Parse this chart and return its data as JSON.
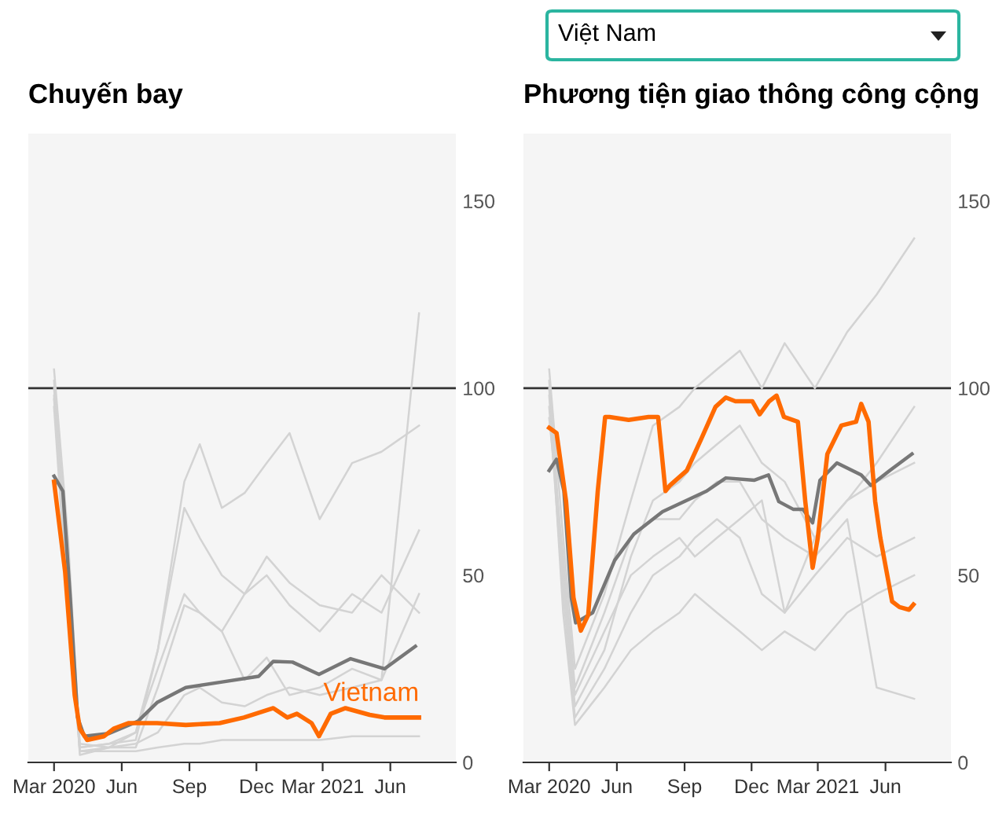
{
  "chart_data": [
    {
      "type": "line",
      "title": "Chuyến bay",
      "ylim": [
        0,
        168
      ],
      "yticks": [
        0,
        50,
        100,
        150
      ],
      "xlim": [
        "2020-01-26",
        "2021-08-29"
      ],
      "xticks": [
        {
          "value": "2020-03-01",
          "label": "Mar 2020"
        },
        {
          "value": "2020-06-01",
          "label": "Jun"
        },
        {
          "value": "2020-09-01",
          "label": "Sep"
        },
        {
          "value": "2020-12-01",
          "label": "Dec"
        },
        {
          "value": "2021-03-01",
          "label": "Mar 2021"
        },
        {
          "value": "2021-06-01",
          "label": "Jun"
        }
      ],
      "ref_lines": [
        {
          "axis": "y",
          "value": 100,
          "color": "#333333"
        }
      ],
      "grid": false,
      "legend": false,
      "series": [
        {
          "color": "#d3d3d3",
          "x": [
            "2020-03-01",
            "2020-03-20",
            "2020-04-05",
            "2020-05-15",
            "2020-06-20",
            "2020-07-20",
            "2020-08-25",
            "2020-09-15",
            "2020-10-15",
            "2020-11-15",
            "2020-12-15",
            "2021-01-15",
            "2021-02-25",
            "2021-04-10",
            "2021-05-20",
            "2021-07-10"
          ],
          "values": [
            105,
            60,
            5,
            4,
            8,
            30,
            75,
            85,
            68,
            72,
            80,
            88,
            65,
            80,
            83,
            90
          ]
        },
        {
          "color": "#d3d3d3",
          "x": [
            "2020-03-01",
            "2020-03-20",
            "2020-04-05",
            "2020-05-15",
            "2020-06-20",
            "2020-07-20",
            "2020-08-25",
            "2020-09-15",
            "2020-10-15",
            "2020-11-15",
            "2020-12-15",
            "2021-01-15",
            "2021-02-25",
            "2021-04-10",
            "2021-05-20",
            "2021-07-10"
          ],
          "values": [
            100,
            50,
            4,
            5,
            6,
            30,
            68,
            60,
            50,
            45,
            50,
            42,
            35,
            45,
            40,
            62
          ]
        },
        {
          "color": "#d3d3d3",
          "x": [
            "2020-03-01",
            "2020-03-20",
            "2020-04-05",
            "2020-05-15",
            "2020-06-20",
            "2020-07-20",
            "2020-08-25",
            "2020-09-15",
            "2020-10-15",
            "2020-11-15",
            "2020-12-15",
            "2021-01-15",
            "2021-02-25",
            "2021-04-10",
            "2021-05-20",
            "2021-07-10"
          ],
          "values": [
            98,
            45,
            3,
            4,
            4,
            20,
            42,
            40,
            35,
            22,
            28,
            18,
            20,
            25,
            22,
            45
          ]
        },
        {
          "color": "#d3d3d3",
          "x": [
            "2020-03-01",
            "2020-03-20",
            "2020-04-05",
            "2020-05-15",
            "2020-06-20",
            "2020-07-20",
            "2020-08-25",
            "2020-09-15",
            "2020-10-15",
            "2020-11-15",
            "2020-12-15",
            "2021-01-15",
            "2021-02-25",
            "2021-04-10",
            "2021-05-20",
            "2021-07-10"
          ],
          "values": [
            95,
            40,
            3,
            3,
            3,
            4,
            5,
            5,
            6,
            6,
            6,
            6,
            6,
            7,
            7,
            7
          ]
        },
        {
          "color": "#d3d3d3",
          "x": [
            "2020-03-01",
            "2020-03-20",
            "2020-04-05",
            "2020-05-15",
            "2020-06-20",
            "2020-07-20",
            "2020-08-25",
            "2020-09-15",
            "2020-10-15",
            "2020-11-15",
            "2020-12-15",
            "2021-01-15",
            "2021-02-25",
            "2021-04-10",
            "2021-05-20",
            "2021-07-10"
          ],
          "values": [
            102,
            55,
            2,
            4,
            5,
            8,
            18,
            20,
            16,
            15,
            18,
            20,
            18,
            20,
            22,
            120
          ]
        },
        {
          "color": "#d3d3d3",
          "x": [
            "2020-03-01",
            "2020-03-20",
            "2020-04-05",
            "2020-05-15",
            "2020-06-20",
            "2020-07-20",
            "2020-08-25",
            "2020-09-15",
            "2020-10-15",
            "2020-11-15",
            "2020-12-15",
            "2021-01-15",
            "2021-02-25",
            "2021-04-10",
            "2021-05-20",
            "2021-07-10"
          ],
          "values": [
            97,
            48,
            4,
            5,
            8,
            25,
            45,
            40,
            35,
            45,
            55,
            48,
            42,
            40,
            50,
            40
          ]
        },
        {
          "color": "#777777",
          "x": [
            "2020-03-01",
            "2020-03-13",
            "2020-03-23",
            "2020-04-02",
            "2020-04-11",
            "2020-05-14",
            "2020-06-23",
            "2020-07-19",
            "2020-08-27",
            "2020-10-12",
            "2020-12-04",
            "2020-12-24",
            "2021-01-19",
            "2021-02-24",
            "2021-04-08",
            "2021-05-24",
            "2021-07-05"
          ],
          "values": [
            76.5,
            72.5,
            44,
            12,
            7,
            7.7,
            11,
            16,
            20,
            21.4,
            23,
            27,
            26.8,
            23.5,
            27.7,
            25,
            31
          ]
        },
        {
          "name": "Vietnam",
          "color": "#ff6a00",
          "x": [
            "2020-03-01",
            "2020-03-16",
            "2020-03-29",
            "2020-04-05",
            "2020-04-15",
            "2020-05-08",
            "2020-05-21",
            "2020-06-10",
            "2020-07-19",
            "2020-08-27",
            "2020-10-12",
            "2020-11-14",
            "2020-12-24",
            "2021-01-12",
            "2021-01-25",
            "2021-02-14",
            "2021-02-24",
            "2021-03-12",
            "2021-04-01",
            "2021-05-04",
            "2021-05-24",
            "2021-06-19",
            "2021-07-10"
          ],
          "values": [
            75,
            51,
            18,
            9,
            6,
            7,
            9,
            10.5,
            10.5,
            10,
            10.5,
            12,
            14.5,
            12,
            13,
            10.5,
            7,
            13,
            14.5,
            12.7,
            12,
            12,
            12
          ]
        }
      ]
    },
    {
      "type": "line",
      "title": "Phương tiện giao thông công cộng",
      "ylim": [
        0,
        168
      ],
      "yticks": [
        0,
        50,
        100,
        150
      ],
      "xlim": [
        "2020-01-26",
        "2021-08-29"
      ],
      "xticks": [
        {
          "value": "2020-03-01",
          "label": "Mar 2020"
        },
        {
          "value": "2020-06-01",
          "label": "Jun"
        },
        {
          "value": "2020-09-01",
          "label": "Sep"
        },
        {
          "value": "2020-12-01",
          "label": "Dec"
        },
        {
          "value": "2021-03-01",
          "label": "Mar 2021"
        },
        {
          "value": "2021-06-01",
          "label": "Jun"
        }
      ],
      "ref_lines": [
        {
          "axis": "y",
          "value": 100,
          "color": "#333333"
        }
      ],
      "grid": false,
      "legend": false,
      "annotations": [
        "Việt Nam"
      ],
      "series": [
        {
          "color": "#d3d3d3",
          "x": [
            "2020-03-01",
            "2020-03-20",
            "2020-04-05",
            "2020-05-15",
            "2020-06-20",
            "2020-07-20",
            "2020-08-25",
            "2020-09-15",
            "2020-10-15",
            "2020-11-15",
            "2020-12-15",
            "2021-01-15",
            "2021-02-25",
            "2021-04-10",
            "2021-05-20",
            "2021-07-10"
          ],
          "values": [
            105,
            60,
            25,
            45,
            70,
            90,
            95,
            100,
            105,
            110,
            100,
            112,
            100,
            115,
            125,
            140
          ]
        },
        {
          "color": "#d3d3d3",
          "x": [
            "2020-03-01",
            "2020-03-20",
            "2020-04-05",
            "2020-05-15",
            "2020-06-20",
            "2020-07-20",
            "2020-08-25",
            "2020-09-15",
            "2020-10-15",
            "2020-11-15",
            "2020-12-15",
            "2021-01-15",
            "2021-02-25",
            "2021-04-10",
            "2021-05-20",
            "2021-07-10"
          ],
          "values": [
            98,
            50,
            15,
            30,
            55,
            70,
            75,
            80,
            85,
            90,
            80,
            75,
            60,
            70,
            80,
            95
          ]
        },
        {
          "color": "#d3d3d3",
          "x": [
            "2020-03-01",
            "2020-03-20",
            "2020-04-05",
            "2020-05-15",
            "2020-06-20",
            "2020-07-20",
            "2020-08-25",
            "2020-09-15",
            "2020-10-15",
            "2020-11-15",
            "2020-12-15",
            "2021-01-15",
            "2021-02-25",
            "2021-04-10",
            "2021-05-20",
            "2021-07-10"
          ],
          "values": [
            95,
            45,
            12,
            25,
            40,
            50,
            55,
            60,
            65,
            60,
            45,
            40,
            50,
            60,
            55,
            60
          ]
        },
        {
          "color": "#d3d3d3",
          "x": [
            "2020-03-01",
            "2020-03-20",
            "2020-04-05",
            "2020-05-15",
            "2020-06-20",
            "2020-07-20",
            "2020-08-25",
            "2020-09-15",
            "2020-10-15",
            "2020-11-15",
            "2020-12-15",
            "2021-01-15",
            "2021-02-25",
            "2021-04-10",
            "2021-05-20",
            "2021-07-10"
          ],
          "values": [
            100,
            40,
            10,
            20,
            30,
            35,
            40,
            45,
            40,
            35,
            30,
            35,
            30,
            40,
            45,
            50
          ]
        },
        {
          "color": "#d3d3d3",
          "x": [
            "2020-03-01",
            "2020-03-20",
            "2020-04-05",
            "2020-05-15",
            "2020-06-20",
            "2020-07-20",
            "2020-08-25",
            "2020-09-15",
            "2020-10-15",
            "2020-11-15",
            "2020-12-15",
            "2021-01-15",
            "2021-02-25",
            "2021-04-10",
            "2021-05-20",
            "2021-07-10"
          ],
          "values": [
            92,
            55,
            20,
            40,
            60,
            65,
            65,
            70,
            75,
            75,
            65,
            60,
            55,
            65,
            20,
            17
          ]
        },
        {
          "color": "#d3d3d3",
          "x": [
            "2020-03-01",
            "2020-03-20",
            "2020-04-05",
            "2020-05-15",
            "2020-06-20",
            "2020-07-20",
            "2020-08-25",
            "2020-09-15",
            "2020-10-15",
            "2020-11-15",
            "2020-12-15",
            "2021-01-15",
            "2021-02-25",
            "2021-04-10",
            "2021-05-20",
            "2021-07-10"
          ],
          "values": [
            102,
            50,
            18,
            35,
            50,
            55,
            60,
            55,
            60,
            65,
            70,
            40,
            60,
            70,
            75,
            80
          ]
        },
        {
          "color": "#777777",
          "x": [
            "2020-03-01",
            "2020-03-11",
            "2020-03-21",
            "2020-03-31",
            "2020-04-06",
            "2020-04-29",
            "2020-05-29",
            "2020-06-24",
            "2020-08-02",
            "2020-10-01",
            "2020-10-27",
            "2020-12-05",
            "2020-12-24",
            "2021-01-07",
            "2021-01-27",
            "2021-02-09",
            "2021-02-22",
            "2021-03-04",
            "2021-03-27",
            "2021-04-29",
            "2021-05-12",
            "2021-06-07",
            "2021-07-07"
          ],
          "values": [
            78,
            81,
            72.5,
            44,
            37.3,
            40,
            54,
            61,
            67,
            72.5,
            76,
            75.4,
            76.8,
            69.7,
            67.6,
            67.6,
            64,
            75.4,
            80,
            76.8,
            74,
            78,
            82.4
          ]
        },
        {
          "color": "#ff6a00",
          "x": [
            "2020-03-01",
            "2020-03-11",
            "2020-03-24",
            "2020-04-03",
            "2020-04-13",
            "2020-04-23",
            "2020-05-06",
            "2020-05-16",
            "2020-05-22",
            "2020-06-17",
            "2020-07-14",
            "2020-07-27",
            "2020-08-06",
            "2020-08-12",
            "2020-09-04",
            "2020-09-24",
            "2020-10-13",
            "2020-10-27",
            "2020-11-09",
            "2020-12-02",
            "2020-12-12",
            "2020-12-25",
            "2021-01-04",
            "2021-01-14",
            "2021-02-02",
            "2021-02-12",
            "2021-02-22",
            "2021-03-01",
            "2021-03-14",
            "2021-04-02",
            "2021-04-22",
            "2021-04-29",
            "2021-05-09",
            "2021-05-18",
            "2021-05-25",
            "2021-06-10",
            "2021-06-20",
            "2021-07-03",
            "2021-07-09"
          ],
          "values": [
            89.4,
            88,
            69.7,
            44,
            35.2,
            39.4,
            72.5,
            92.3,
            92.3,
            91.5,
            92.3,
            92.3,
            72.5,
            74,
            78,
            86.6,
            95,
            97.5,
            96.5,
            96.5,
            93,
            96.5,
            98,
            92.3,
            91,
            69.7,
            52,
            60,
            82.4,
            90,
            91,
            95.8,
            91,
            69.7,
            60,
            43,
            41.5,
            40.8,
            42.2
          ]
        }
      ]
    }
  ]
}
